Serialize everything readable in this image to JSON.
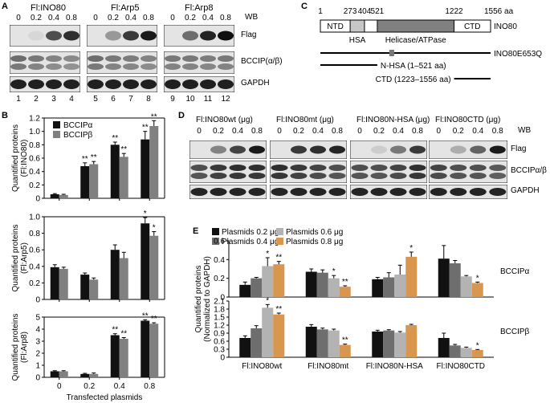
{
  "panelA": {
    "letter": "A",
    "titles": [
      "Fl:INO80",
      "Fl:Arp5",
      "Fl:Arp8"
    ],
    "wb_label": "WB",
    "doses": [
      "0",
      "0.2",
      "0.4",
      "0.8"
    ],
    "lanes": [
      "1",
      "2",
      "3",
      "4",
      "5",
      "6",
      "7",
      "8",
      "9",
      "10",
      "11",
      "12"
    ],
    "rows": [
      "Flag",
      "BCCIP(α/β)",
      "GAPDH"
    ]
  },
  "panelB": {
    "letter": "B",
    "xlabel": "Transfected plasmids",
    "legend": [
      "BCCIPα",
      "BCCIPβ"
    ],
    "colors": {
      "alpha": "#111111",
      "beta": "#808080"
    }
  },
  "panelC": {
    "letter": "C",
    "coords": [
      "1",
      "273",
      "404",
      "521",
      "1222",
      "1556 aa"
    ],
    "domains": [
      "NTD",
      "HSA",
      "Helicase/ATPase",
      "CTD"
    ],
    "protein": "INO80",
    "constructs": [
      "INO80E653Q",
      "N-HSA (1–521 aa)",
      "CTD (1223–1556 aa)"
    ]
  },
  "panelD": {
    "letter": "D",
    "titles": [
      "Fl:INO80wt (μg)",
      "Fl:INO80mt (μg)",
      "Fl:INO80N-HSA (μg)",
      "Fl:INO80CTD (μg)"
    ],
    "wb_label": "WB",
    "doses": [
      "0",
      "0.2",
      "0.4",
      "0.8"
    ],
    "rows": [
      "Flag",
      "BCCIPα/β",
      "GAPDH"
    ]
  },
  "panelE": {
    "letter": "E",
    "legend": [
      "Plasmids 0.2 μg",
      "Plasmids 0.4 μg",
      "Plasmids 0.6 μg",
      "Plasmids 0.8 μg"
    ],
    "colors": [
      "#111111",
      "#6e6e6e",
      "#b3b3b3",
      "#d8964f"
    ],
    "ylabel": "Quantified proteins (Normalized to GAPDH)",
    "groups": [
      "Fl:INO80wt",
      "Fl:INO80mt",
      "Fl:INO80N-HSA",
      "Fl:INO80CTD"
    ],
    "row_labels": [
      "BCCIPα",
      "BCCIPβ"
    ]
  },
  "chart_data": [
    {
      "type": "bar",
      "ylabel": "Quantified proteins (Fl:INO80)",
      "xlabel": "Transfected plasmids",
      "categories": [
        "0",
        "0.2",
        "0.4",
        "0.8"
      ],
      "ylim": [
        0,
        1.2
      ],
      "yticks": [
        "0",
        "0.2",
        "0.4",
        "0.6",
        "0.8",
        "1.0",
        "1.2"
      ],
      "series": [
        {
          "name": "BCCIPα",
          "values": [
            0.06,
            0.48,
            0.8,
            0.88
          ],
          "errors": [
            0.01,
            0.05,
            0.04,
            0.12
          ],
          "stars": [
            "",
            "**",
            "**",
            "**"
          ]
        },
        {
          "name": "BCCIPβ",
          "values": [
            0.05,
            0.51,
            0.62,
            1.08
          ],
          "errors": [
            0.01,
            0.04,
            0.05,
            0.08
          ],
          "stars": [
            "",
            "**",
            "**",
            "**"
          ]
        }
      ]
    },
    {
      "type": "bar",
      "ylabel": "Quantified proteins (Fl:Arp5)",
      "categories": [
        "0",
        "0.2",
        "0.4",
        "0.8"
      ],
      "ylim": [
        0,
        1.0
      ],
      "yticks": [
        "0",
        "0.2",
        "0.4",
        "0.6",
        "0.8",
        "1.0"
      ],
      "series": [
        {
          "name": "BCCIPα",
          "values": [
            0.39,
            0.3,
            0.6,
            0.92
          ],
          "errors": [
            0.03,
            0.02,
            0.06,
            0.07
          ],
          "stars": [
            "",
            "",
            "",
            "*"
          ]
        },
        {
          "name": "BCCIPβ",
          "values": [
            0.37,
            0.24,
            0.5,
            0.77
          ],
          "errors": [
            0.02,
            0.02,
            0.07,
            0.05
          ],
          "stars": [
            "",
            "",
            "",
            "*"
          ]
        }
      ]
    },
    {
      "type": "bar",
      "ylabel": "Quantified proteins (Fl:Arp8)",
      "categories": [
        "0",
        "0.2",
        "0.4",
        "0.8"
      ],
      "ylim": [
        0,
        5
      ],
      "yticks": [
        "0",
        "1",
        "2",
        "3",
        "4",
        "5"
      ],
      "series": [
        {
          "name": "BCCIPα",
          "values": [
            0.5,
            0.28,
            3.5,
            4.7
          ],
          "errors": [
            0.05,
            0.05,
            0.12,
            0.08
          ],
          "stars": [
            "",
            "",
            "**",
            "**"
          ]
        },
        {
          "name": "BCCIPβ",
          "values": [
            0.5,
            0.28,
            3.2,
            4.45
          ],
          "errors": [
            0.05,
            0.08,
            0.1,
            0.08
          ],
          "stars": [
            "",
            "",
            "**",
            "**"
          ]
        }
      ]
    },
    {
      "type": "bar",
      "row": "BCCIPα",
      "categories": [
        "Fl:INO80wt",
        "Fl:INO80mt",
        "Fl:INO80N-HSA",
        "Fl:INO80CTD"
      ],
      "ylim": [
        0,
        0.6
      ],
      "yticks": [
        "0",
        "0.2",
        "0.4",
        "0.6"
      ],
      "series": [
        {
          "name": "Plasmids 0.2 μg",
          "values": [
            0.13,
            0.27,
            0.19,
            0.41
          ],
          "errors": [
            0.03,
            0.03,
            0.02,
            0.14
          ],
          "stars": [
            "",
            "",
            "",
            ""
          ]
        },
        {
          "name": "Plasmids 0.4 μg",
          "values": [
            0.2,
            0.26,
            0.21,
            0.36
          ],
          "errors": [
            0.01,
            0.03,
            0.05,
            0.03
          ],
          "stars": [
            "",
            "",
            "",
            ""
          ]
        },
        {
          "name": "Plasmids 0.6 μg",
          "values": [
            0.33,
            0.2,
            0.24,
            0.22
          ],
          "errors": [
            0.09,
            0.03,
            0.1,
            0.01
          ],
          "stars": [
            "*",
            "*",
            "",
            ""
          ]
        },
        {
          "name": "Plasmids 0.8 μg",
          "values": [
            0.35,
            0.11,
            0.43,
            0.15
          ],
          "errors": [
            0.03,
            0.01,
            0.05,
            0.01
          ],
          "stars": [
            "**",
            "**",
            "*",
            "*"
          ]
        }
      ]
    },
    {
      "type": "bar",
      "row": "BCCIPβ",
      "categories": [
        "Fl:INO80wt",
        "Fl:INO80mt",
        "Fl:INO80N-HSA",
        "Fl:INO80CTD"
      ],
      "ylim": [
        0,
        2.1
      ],
      "yticks": [
        "0",
        "0.3",
        "0.6",
        "0.9",
        "1.2",
        "1.5",
        "1.8",
        "2.1"
      ],
      "series": [
        {
          "name": "Plasmids 0.2 μg",
          "values": [
            0.72,
            1.14,
            0.96,
            0.72
          ],
          "errors": [
            0.08,
            0.08,
            0.05,
            0.18
          ],
          "stars": [
            "",
            "",
            "",
            ""
          ]
        },
        {
          "name": "Plasmids 0.4 μg",
          "values": [
            1.08,
            1.04,
            1.0,
            0.44
          ],
          "errors": [
            0.1,
            0.05,
            0.03,
            0.04
          ],
          "stars": [
            "",
            "",
            "",
            ""
          ]
        },
        {
          "name": "Plasmids 0.6 μg",
          "values": [
            1.85,
            1.0,
            0.92,
            0.35
          ],
          "errors": [
            0.12,
            0.05,
            0.04,
            0.03
          ],
          "stars": [
            "*",
            "",
            "",
            ""
          ]
        },
        {
          "name": "Plasmids 0.8 μg",
          "values": [
            1.6,
            0.46,
            1.2,
            0.27
          ],
          "errors": [
            0.05,
            0.03,
            0.03,
            0.02
          ],
          "stars": [
            "**",
            "**",
            "",
            "*"
          ]
        }
      ]
    }
  ]
}
